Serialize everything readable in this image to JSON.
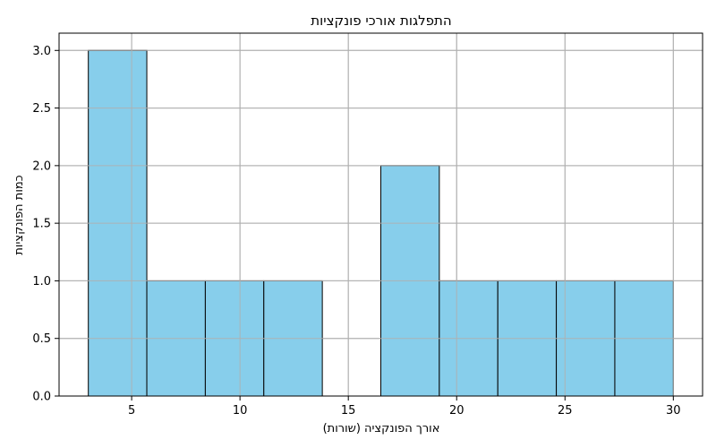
{
  "chart_data": {
    "type": "bar",
    "title": "התפלגות אורכי פונקציות",
    "xlabel": "אורך הפונקציה (שורות)",
    "ylabel": "כמות הפונקציות",
    "bin_edges": [
      3,
      5.7,
      8.4,
      11.1,
      13.8,
      16.5,
      19.2,
      21.9,
      24.6,
      27.3,
      30
    ],
    "values": [
      3,
      1,
      1,
      1,
      0,
      2,
      1,
      1,
      1,
      1
    ],
    "xlim": [
      1.65,
      31.35
    ],
    "ylim": [
      0,
      3.15
    ],
    "xticks": [
      5,
      10,
      15,
      20,
      25,
      30
    ],
    "yticks": [
      0,
      0.5,
      1,
      1.5,
      2,
      2.5,
      3
    ],
    "ytick_labels": [
      "0.0",
      "0.5",
      "1.0",
      "1.5",
      "2.0",
      "2.5",
      "3.0"
    ],
    "grid": true,
    "bar_color": "#87CEEB",
    "edge_color": "#000000",
    "grid_color": "#b0b0b0"
  }
}
